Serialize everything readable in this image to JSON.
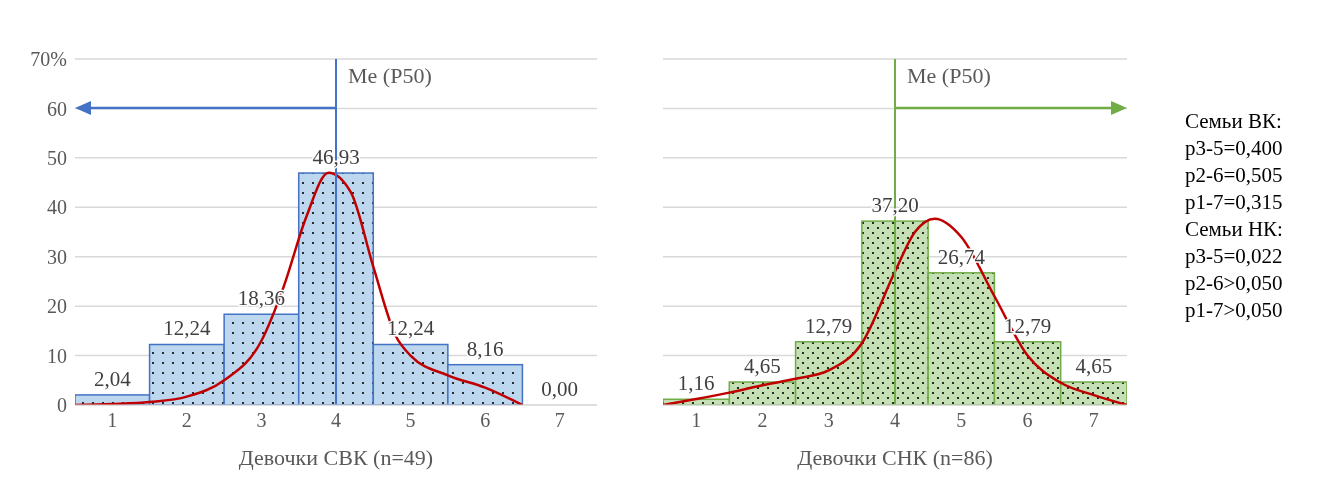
{
  "chart_data": [
    {
      "type": "bar",
      "xlabel": "Девочки СВК (n=49)",
      "xlim": [
        0.5,
        7.5
      ],
      "xticks": [
        1,
        2,
        3,
        4,
        5,
        6,
        7
      ],
      "ylim": [
        0,
        70
      ],
      "yticks": [
        0,
        10,
        20,
        30,
        40,
        50,
        60,
        {
          "value": 70,
          "label": "70%"
        }
      ],
      "grid": "y",
      "series": [
        {
          "color": "#4472c4",
          "x": [
            1,
            2,
            3,
            4,
            5,
            6,
            7
          ],
          "values": [
            2.04,
            12.24,
            18.36,
            46.93,
            12.24,
            8.16,
            0
          ],
          "value_labels": [
            "2,04",
            "12,24",
            "18,36",
            "46,93",
            "12,24",
            "8,16",
            "0,00"
          ]
        },
        {
          "type": "line",
          "color": "#c00000",
          "x": [
            0.5,
            1,
            1.5,
            2,
            2.5,
            3,
            3.3,
            3.6,
            3.9,
            4.2,
            4.5,
            4.8,
            5,
            5.5,
            6,
            6.5
          ],
          "values": [
            0,
            0.2,
            0.6,
            1.7,
            5,
            13,
            24,
            38,
            47,
            43,
            28,
            14,
            10,
            6,
            3.5,
            0
          ]
        }
      ],
      "ref_lines": [
        {
          "axis": "x",
          "value": 4,
          "label": "Me (P50)",
          "color": "#4472c4"
        }
      ]
    },
    {
      "type": "bar",
      "xlabel": "Девочки СНК (n=86)",
      "xlim": [
        0.5,
        7.5
      ],
      "xticks": [
        1,
        2,
        3,
        4,
        5,
        6,
        7
      ],
      "ylim": [
        0,
        70
      ],
      "yticks": [
        0,
        10,
        20,
        30,
        40,
        50,
        60,
        70
      ],
      "grid": "y",
      "tick_labels": "x",
      "series": [
        {
          "color": "#70ad47",
          "x": [
            1,
            2,
            3,
            4,
            5,
            6,
            7
          ],
          "values": [
            1.16,
            4.65,
            12.79,
            37.2,
            26.74,
            12.79,
            4.65
          ],
          "value_labels": [
            "1,16",
            "4,65",
            "12,79",
            "37,20",
            "26,74",
            "12,79",
            "4,65"
          ]
        },
        {
          "type": "line",
          "color": "#c00000",
          "x": [
            0.5,
            1,
            1.5,
            2,
            2.5,
            3,
            3.5,
            4,
            4.3,
            4.6,
            5,
            5.5,
            6,
            6.5,
            7,
            7.5
          ],
          "values": [
            0,
            1.2,
            2.5,
            4,
            5.3,
            7,
            12.5,
            27,
            35,
            37.7,
            34,
            22,
            10,
            4.5,
            2,
            0
          ]
        }
      ],
      "ref_lines": [
        {
          "axis": "x",
          "value": 4,
          "label": "Me (P50)",
          "color": "#70ad47"
        }
      ],
      "annotations": [
        "Семьи ВК:",
        "p3-5=0,400",
        "p2-6=0,505",
        "p1-7=0,315",
        "Семьи НК:",
        "p3-5=0,022",
        "p2-6>0,050",
        "p1-7>0,050"
      ]
    }
  ]
}
